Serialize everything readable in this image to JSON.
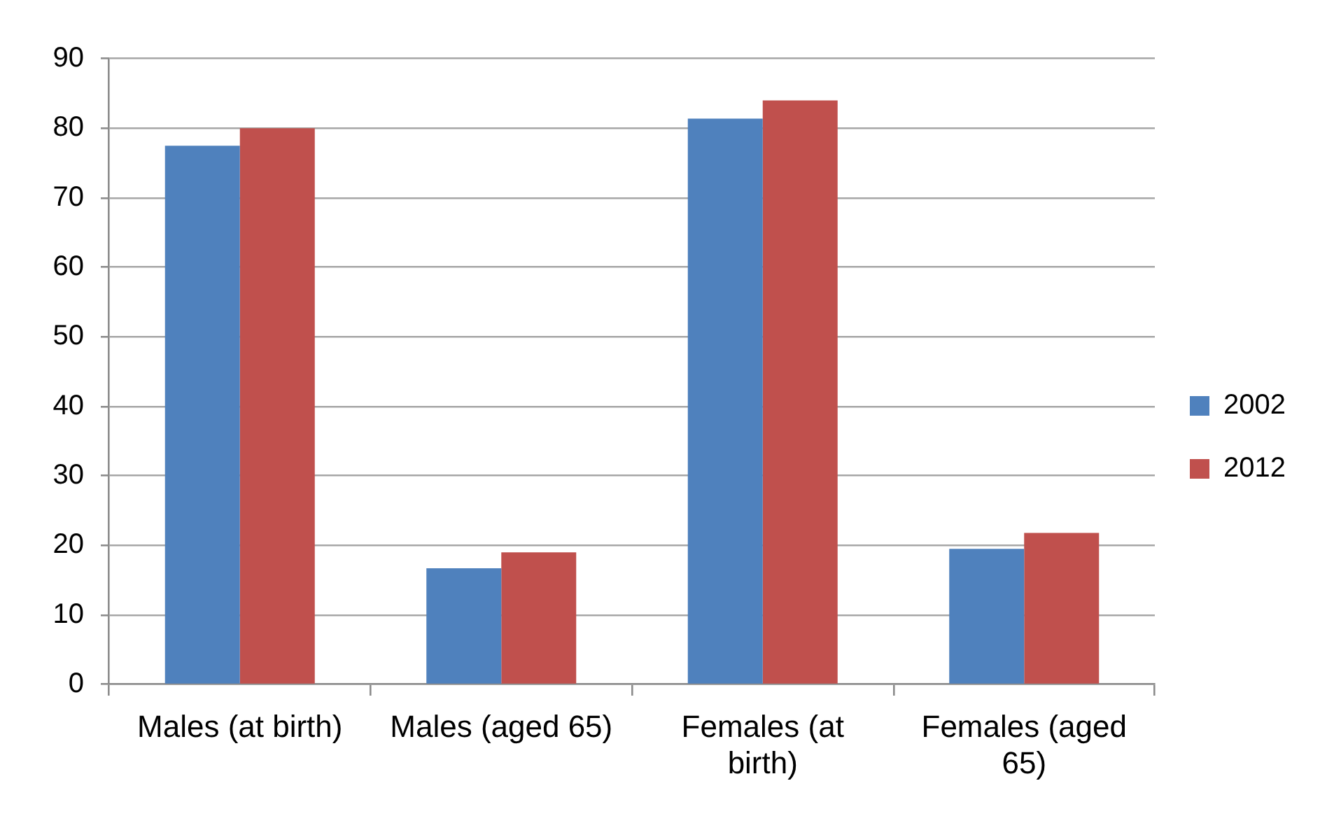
{
  "chart_data": {
    "type": "bar",
    "categories": [
      "Males (at birth)",
      "Males (aged 65)",
      "Females (at birth)",
      "Females (aged 65)"
    ],
    "series": [
      {
        "name": "2002",
        "color": "#4f81bd",
        "values": [
          77.5,
          16.7,
          81.4,
          19.5
        ]
      },
      {
        "name": "2012",
        "color": "#c0504d",
        "values": [
          80,
          19.0,
          84.0,
          21.8
        ]
      }
    ],
    "ylim": [
      0,
      90
    ],
    "yticks": [
      0,
      10,
      20,
      30,
      40,
      50,
      60,
      70,
      80,
      90
    ],
    "grid": "y",
    "legend": "right"
  }
}
